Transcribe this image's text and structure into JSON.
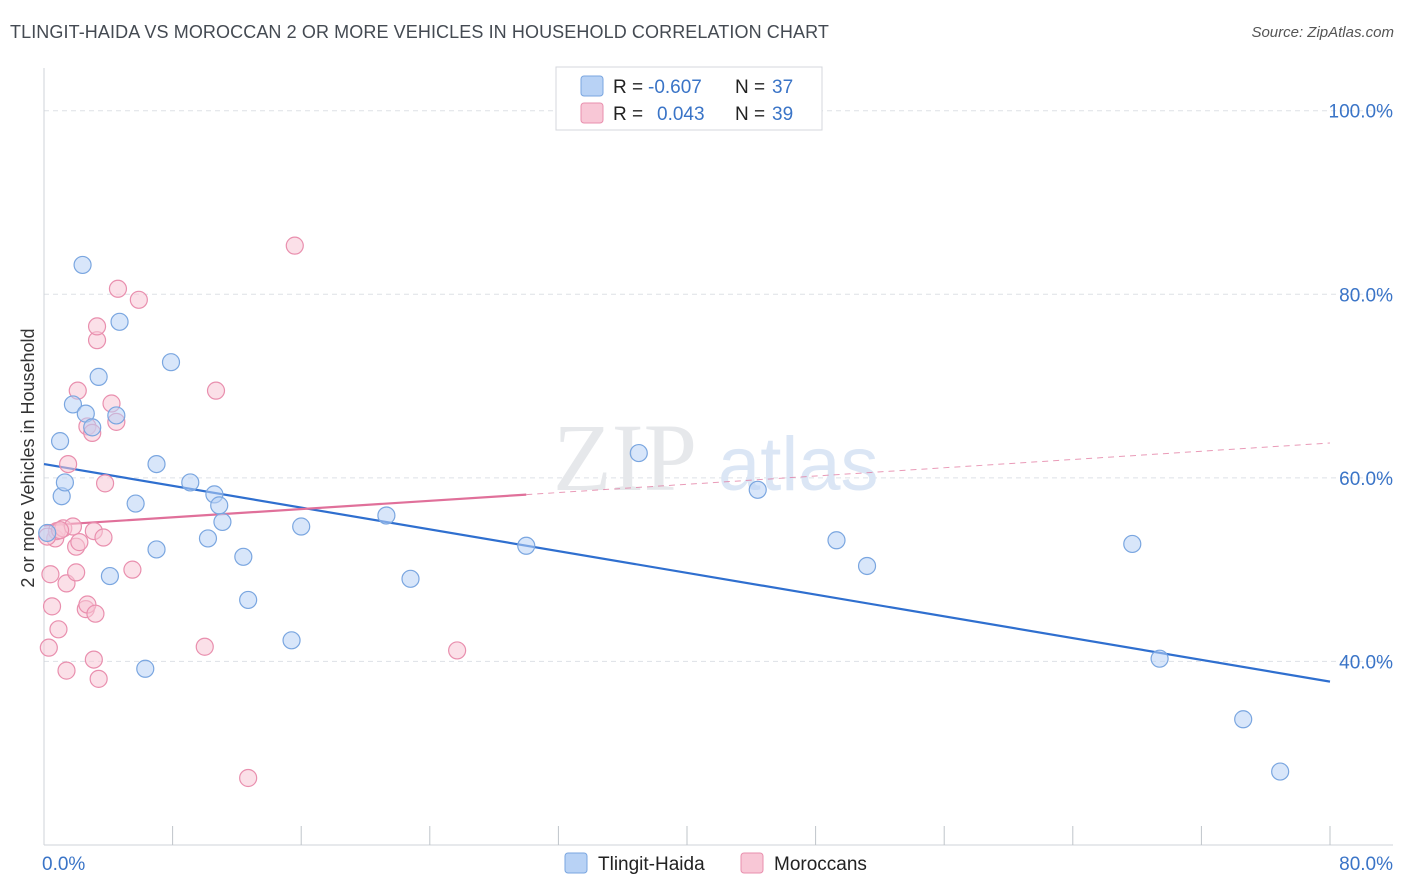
{
  "title": "TLINGIT-HAIDA VS MOROCCAN 2 OR MORE VEHICLES IN HOUSEHOLD CORRELATION CHART",
  "source": "Source: ZipAtlas.com",
  "watermark": {
    "zip": "ZIP",
    "atlas": "atlas"
  },
  "colors": {
    "blue_fill": "#b8d2f5",
    "blue_stroke": "#7aa6e0",
    "blue_line": "#2f6fcf",
    "pink_fill": "#f8c7d6",
    "pink_stroke": "#e98fae",
    "pink_line": "#e0709a",
    "grid": "#dde1e6",
    "tick_text": "#3a74c7"
  },
  "legend": {
    "rows": [
      {
        "r_label": "R =",
        "r_value": "-0.607",
        "n_label": "N =",
        "n_value": "37"
      },
      {
        "r_label": "R =",
        "r_value": "0.043",
        "n_label": "N =",
        "n_value": "39"
      }
    ]
  },
  "chart_data": {
    "type": "scatter",
    "title": "TLINGIT-HAIDA VS MOROCCAN 2 OR MORE VEHICLES IN HOUSEHOLD CORRELATION CHART",
    "xlabel": "",
    "ylabel": "2 or more Vehicles in Household",
    "xlim": [
      0,
      80
    ],
    "ylim": [
      20,
      104
    ],
    "x_tick_labels": [
      {
        "value": 0,
        "label": "0.0%"
      },
      {
        "value": 80,
        "label": "80.0%"
      }
    ],
    "x_minor_ticks": [
      8,
      16,
      24,
      32,
      40,
      48,
      56,
      64,
      72,
      80
    ],
    "y_ticks": [
      {
        "value": 100,
        "label": "100.0%"
      },
      {
        "value": 80,
        "label": "80.0%"
      },
      {
        "value": 60,
        "label": "60.0%"
      },
      {
        "value": 40,
        "label": "40.0%"
      }
    ],
    "series": [
      {
        "name": "Tlingit-Haida",
        "color": "blue",
        "r": -0.607,
        "n": 37,
        "trend": {
          "x0": 0,
          "y0": 61.5,
          "x1": 80,
          "y1": 37.8,
          "dashed_from": null
        },
        "points": [
          [
            0.2,
            54
          ],
          [
            1.0,
            64
          ],
          [
            1.1,
            58
          ],
          [
            1.3,
            59.5
          ],
          [
            1.8,
            68
          ],
          [
            2.4,
            83.2
          ],
          [
            2.6,
            67
          ],
          [
            3.0,
            65.5
          ],
          [
            3.4,
            71
          ],
          [
            4.1,
            49.3
          ],
          [
            4.5,
            66.8
          ],
          [
            4.7,
            77
          ],
          [
            5.7,
            57.2
          ],
          [
            6.3,
            39.2
          ],
          [
            7.0,
            52.2
          ],
          [
            7.0,
            61.5
          ],
          [
            7.9,
            72.6
          ],
          [
            9.1,
            59.5
          ],
          [
            10.2,
            53.4
          ],
          [
            10.6,
            58.2
          ],
          [
            10.9,
            57
          ],
          [
            11.1,
            55.2
          ],
          [
            12.4,
            51.4
          ],
          [
            12.7,
            46.7
          ],
          [
            15.4,
            42.3
          ],
          [
            16.0,
            54.7
          ],
          [
            21.3,
            55.9
          ],
          [
            22.8,
            49
          ],
          [
            30.0,
            52.6
          ],
          [
            37.0,
            62.7
          ],
          [
            44.4,
            58.7
          ],
          [
            49.3,
            53.2
          ],
          [
            51.2,
            50.4
          ],
          [
            67.7,
            52.8
          ],
          [
            69.4,
            40.3
          ],
          [
            74.6,
            33.7
          ],
          [
            76.9,
            28
          ]
        ]
      },
      {
        "name": "Moroccans",
        "color": "pink",
        "r": 0.043,
        "n": 39,
        "trend": {
          "x0": 0,
          "y0": 54.8,
          "x1": 80,
          "y1": 63.8,
          "solid_until": 30
        },
        "points": [
          [
            0.3,
            41.5
          ],
          [
            0.4,
            49.5
          ],
          [
            0.5,
            46
          ],
          [
            0.7,
            53.4
          ],
          [
            0.8,
            54.2
          ],
          [
            0.9,
            43.5
          ],
          [
            1.2,
            54.5
          ],
          [
            1.4,
            48.5
          ],
          [
            1.4,
            39
          ],
          [
            1.5,
            61.5
          ],
          [
            1.8,
            54.7
          ],
          [
            2.0,
            49.7
          ],
          [
            2.0,
            52.5
          ],
          [
            2.1,
            69.5
          ],
          [
            2.2,
            53
          ],
          [
            2.6,
            45.7
          ],
          [
            2.7,
            46.2
          ],
          [
            2.7,
            65.6
          ],
          [
            3.0,
            64.9
          ],
          [
            3.1,
            40.2
          ],
          [
            3.1,
            54.2
          ],
          [
            3.2,
            45.2
          ],
          [
            3.3,
            75
          ],
          [
            3.3,
            76.5
          ],
          [
            3.4,
            38.1
          ],
          [
            3.7,
            53.5
          ],
          [
            3.8,
            59.4
          ],
          [
            4.2,
            68.1
          ],
          [
            4.5,
            66.1
          ],
          [
            4.6,
            80.6
          ],
          [
            5.5,
            50
          ],
          [
            5.9,
            79.4
          ],
          [
            10.0,
            41.6
          ],
          [
            10.7,
            69.5
          ],
          [
            12.7,
            27.3
          ],
          [
            15.6,
            85.3
          ],
          [
            25.7,
            41.2
          ],
          [
            0.2,
            53.6
          ],
          [
            1.0,
            54.3
          ]
        ]
      }
    ]
  },
  "bottom_legend": [
    {
      "label": "Tlingit-Haida",
      "color": "blue"
    },
    {
      "label": "Moroccans",
      "color": "pink"
    }
  ]
}
